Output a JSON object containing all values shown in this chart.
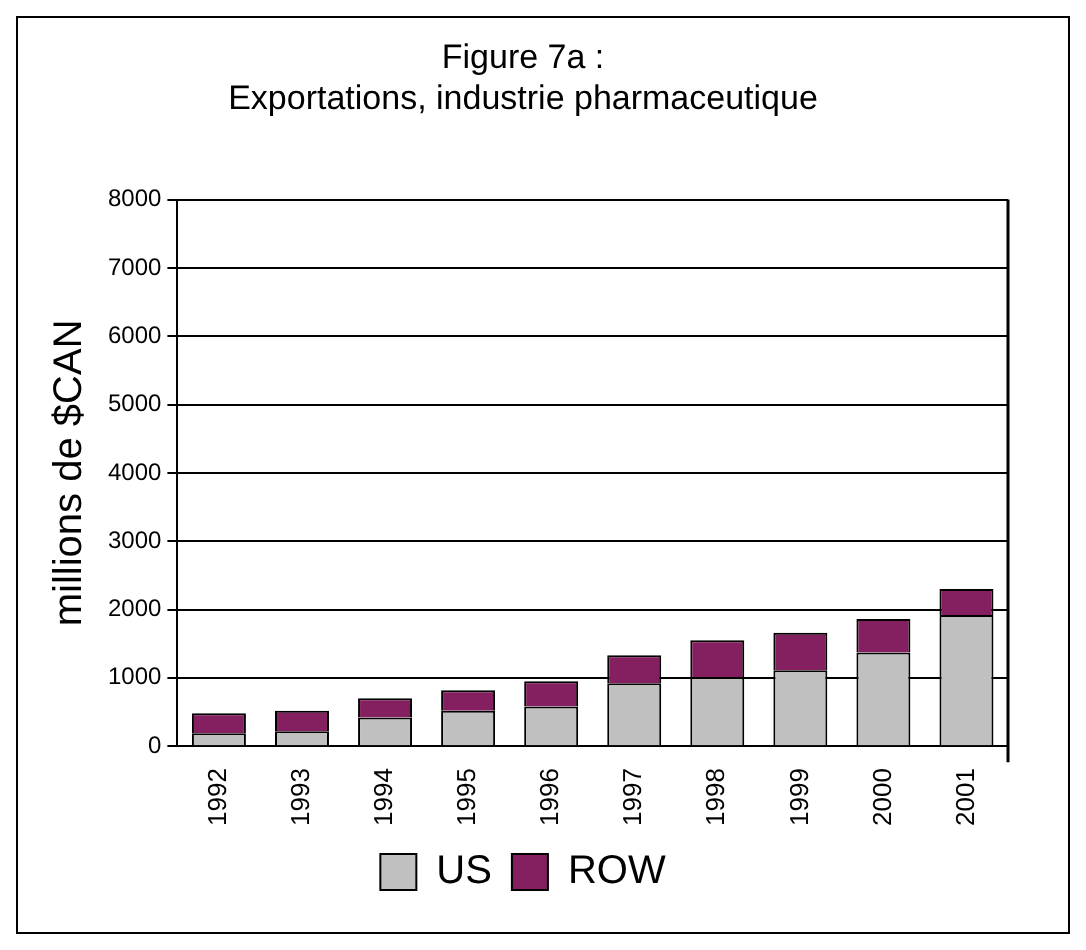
{
  "chart_data": {
    "type": "bar",
    "title": [
      "Figure 7a :",
      "Exportations, industrie pharmaceutique"
    ],
    "ylabel": "millions de $CAN",
    "categories": [
      "1992",
      "1993",
      "1994",
      "1995",
      "1996",
      "1997",
      "1998",
      "1999",
      "2000",
      "2001"
    ],
    "series": [
      {
        "name": "US",
        "color": "#c0c0c0",
        "values": [
          190,
          220,
          420,
          520,
          580,
          920,
          1010,
          1110,
          1370,
          1920
        ]
      },
      {
        "name": "ROW",
        "color": "#842060",
        "values": [
          290,
          300,
          280,
          300,
          370,
          410,
          540,
          550,
          490,
          380
        ]
      }
    ],
    "stacked": true,
    "ylim": [
      0,
      8000
    ],
    "yticks": [
      0,
      1000,
      2000,
      3000,
      4000,
      5000,
      6000,
      7000,
      8000
    ],
    "grid": "y",
    "legend": "bottom"
  }
}
